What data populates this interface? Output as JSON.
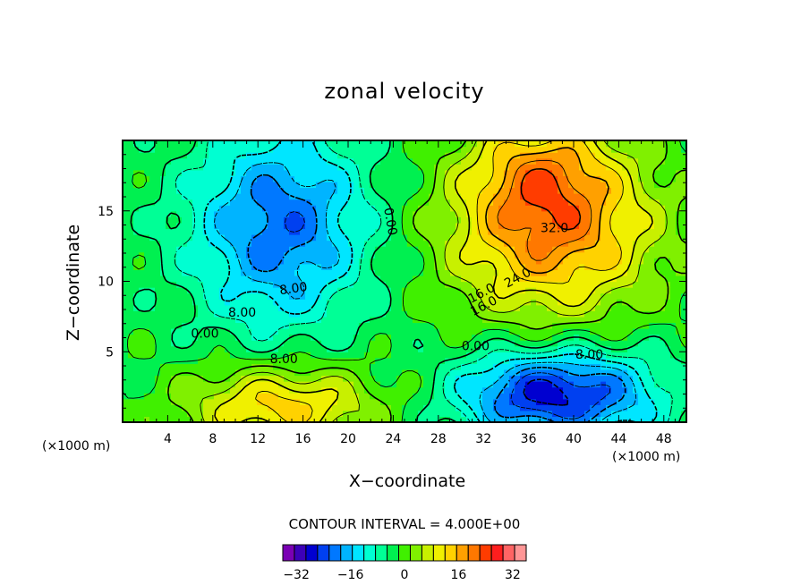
{
  "chart_data": {
    "type": "heatmap",
    "subtype": "filled-contour",
    "title": "zonal velocity",
    "xlabel": "X−coordinate",
    "ylabel": "Z−coordinate",
    "x_unit": "(×1000 m)",
    "xlim": [
      0,
      50
    ],
    "ylim": [
      0,
      20
    ],
    "x_ticks": [
      4,
      8,
      12,
      16,
      20,
      24,
      28,
      32,
      36,
      40,
      44,
      48
    ],
    "y_ticks": [
      5,
      10,
      15
    ],
    "contour_interval_text": "CONTOUR INTERVAL = 4.000E+00",
    "contour_interval": 4,
    "contour_labels": [
      "32.0",
      "24.0",
      "16.0",
      "16.0",
      "8.00",
      "8.00",
      "8.00",
      "0.00",
      "0.00",
      "0.00",
      "8.00"
    ],
    "features": [
      {
        "kind": "max",
        "x": 38,
        "y": 13.5,
        "value": 34
      },
      {
        "kind": "max",
        "x": 14,
        "y": 1.5,
        "value": 22
      },
      {
        "kind": "min",
        "x": 13,
        "y": 13,
        "value": -22
      },
      {
        "kind": "min",
        "x": 37.5,
        "y": 2,
        "value": -30
      }
    ],
    "colorbar": {
      "min": -36,
      "max": 36,
      "step": 4,
      "tick_labels": [
        "−32",
        "−16",
        "0",
        "16",
        "32"
      ],
      "tick_values": [
        -32,
        -16,
        0,
        16,
        32
      ],
      "colors": [
        "#7a00b4",
        "#3c00b8",
        "#0000d0",
        "#0040f0",
        "#0078ff",
        "#00b4ff",
        "#00e6ff",
        "#00ffd2",
        "#00ff96",
        "#00f050",
        "#40f000",
        "#80f000",
        "#c8f000",
        "#f0f000",
        "#ffd200",
        "#ffa000",
        "#ff7800",
        "#ff3c00",
        "#ff1e1e",
        "#ff6464",
        "#ff9696"
      ]
    }
  }
}
